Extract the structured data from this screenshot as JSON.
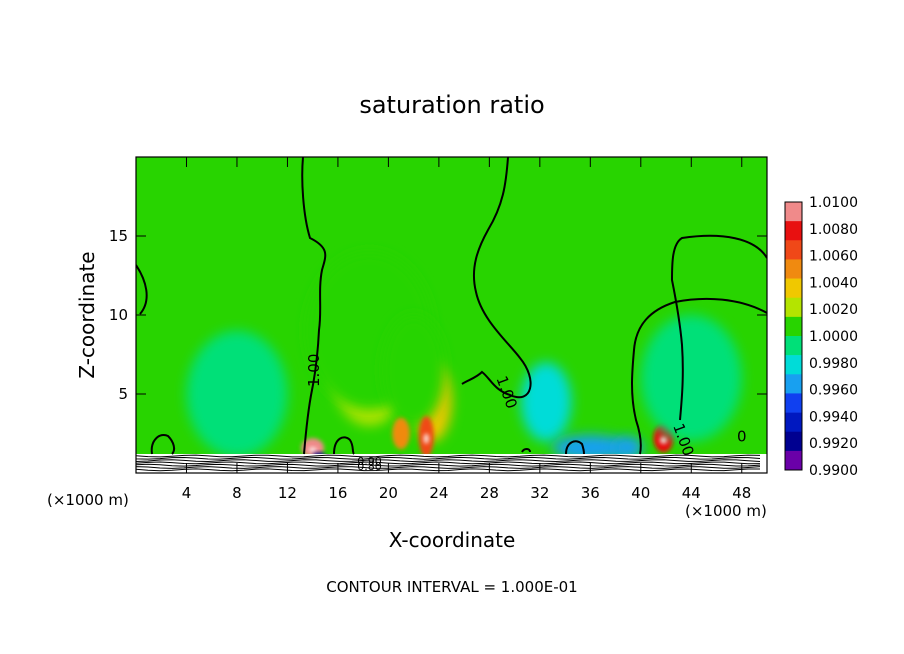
{
  "chart_data": {
    "type": "heatmap",
    "title": "saturation ratio",
    "xlabel": "X-coordinate",
    "ylabel": "Z-coordinate",
    "x_unit": "(×1000 m)",
    "x_unit_right": "(×1000 m)",
    "xlim": [
      0,
      50
    ],
    "ylim": [
      0,
      20
    ],
    "x_ticks": [
      4,
      8,
      12,
      16,
      20,
      24,
      28,
      32,
      36,
      40,
      44,
      48
    ],
    "y_ticks": [
      5,
      10,
      15
    ],
    "footer": "CONTOUR INTERVAL = 1.000E-01",
    "colorbar": {
      "labels": [
        "1.0100",
        "1.0080",
        "1.0060",
        "1.0040",
        "1.0020",
        "1.0000",
        "0.9980",
        "0.9960",
        "0.9940",
        "0.9920",
        "0.9900"
      ],
      "colors": [
        "#f08a8a",
        "#e81010",
        "#f04818",
        "#f08a10",
        "#f0c800",
        "#b4e400",
        "#28d400",
        "#00e078",
        "#00dcd8",
        "#18a0f0",
        "#1040f0",
        "#0018c0",
        "#000090",
        "#6a00a8"
      ]
    },
    "contour_labels": [
      {
        "text": "1.00",
        "x": 14.5,
        "z": 6.5
      },
      {
        "text": "1.00",
        "x": 29.0,
        "z": 5.0
      },
      {
        "text": "1.00",
        "x": 43.0,
        "z": 2.0
      },
      {
        "text": "0",
        "x": 48.0,
        "z": 2.0
      },
      {
        "text": "0.90",
        "x": 18.5,
        "z": 0.5
      },
      {
        "text": "0.80",
        "x": 18.5,
        "z": 0.2
      }
    ],
    "features": [
      {
        "x": 18.5,
        "z": 6.5,
        "sx": 3.0,
        "sz": 3.5,
        "v": 1.0028
      },
      {
        "x": 18.5,
        "z": 9.0,
        "sx": 5.0,
        "sz": 5.0,
        "v": 1.0012
      },
      {
        "x": 23.5,
        "z": 4.5,
        "sx": 1.5,
        "sz": 2.5,
        "v": 1.0035
      },
      {
        "x": 22.0,
        "z": 6.5,
        "sx": 2.5,
        "sz": 3.5,
        "v": 1.0012
      },
      {
        "x": 14.0,
        "z": 1.6,
        "sx": 0.9,
        "sz": 0.6,
        "v": 1.0095
      },
      {
        "x": 21.0,
        "z": 2.5,
        "sx": 0.7,
        "sz": 1.0,
        "v": 1.0055
      },
      {
        "x": 23.0,
        "z": 2.3,
        "sx": 0.6,
        "sz": 1.3,
        "v": 1.007
      },
      {
        "x": 41.8,
        "z": 2.2,
        "sx": 0.8,
        "sz": 0.9,
        "v": 1.008
      },
      {
        "x": 32.5,
        "z": 4.5,
        "sx": 2.0,
        "sz": 2.5,
        "v": 0.9975
      },
      {
        "x": 8.0,
        "z": 5.0,
        "sx": 4.0,
        "sz": 4.0,
        "v": 0.9988
      },
      {
        "x": 44.0,
        "z": 6.0,
        "sx": 4.0,
        "sz": 4.0,
        "v": 0.9988
      },
      {
        "x": 36.0,
        "z": 1.6,
        "sx": 3.0,
        "sz": 0.8,
        "v": 0.9968
      },
      {
        "x": 39.0,
        "z": 1.6,
        "sx": 1.2,
        "sz": 0.7,
        "v": 0.9962
      },
      {
        "x": 14.5,
        "z": 1.1,
        "sx": 0.5,
        "sz": 0.2,
        "v": 0.992
      }
    ]
  }
}
